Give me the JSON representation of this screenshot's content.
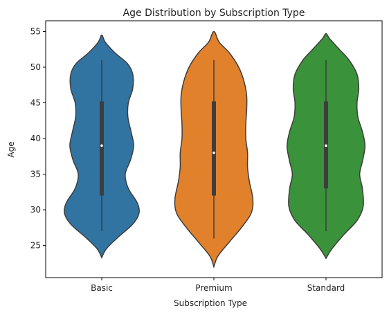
{
  "chart_data": {
    "type": "violin",
    "title": "Age Distribution by Subscription Type",
    "xlabel": "Subscription Type",
    "ylabel": "Age",
    "ylim": [
      20.5,
      56.5
    ],
    "yticks": [
      25,
      30,
      35,
      40,
      45,
      50,
      55
    ],
    "grid": false,
    "categories": [
      "Basic",
      "Premium",
      "Standard"
    ],
    "series": [
      {
        "category": "Basic",
        "color": "#3274a1",
        "whisker": [
          27,
          51
        ],
        "q1": 32,
        "median": 39,
        "q3": 45.2,
        "density_profile": [
          [
            23.3,
            0.0
          ],
          [
            24.5,
            0.1
          ],
          [
            26,
            0.34
          ],
          [
            28,
            0.7
          ],
          [
            29.5,
            0.84
          ],
          [
            31,
            0.8
          ],
          [
            33,
            0.6
          ],
          [
            35,
            0.53
          ],
          [
            37,
            0.65
          ],
          [
            39,
            0.72
          ],
          [
            41,
            0.66
          ],
          [
            43,
            0.59
          ],
          [
            45,
            0.6
          ],
          [
            47,
            0.7
          ],
          [
            49,
            0.7
          ],
          [
            50.5,
            0.58
          ],
          [
            52,
            0.3
          ],
          [
            53.5,
            0.08
          ],
          [
            54.5,
            0.0
          ]
        ]
      },
      {
        "category": "Premium",
        "color": "#e1812c",
        "whisker": [
          26,
          51
        ],
        "q1": 32,
        "median": 38,
        "q3": 45.2,
        "density_profile": [
          [
            22.0,
            0.0
          ],
          [
            23.5,
            0.09
          ],
          [
            25.5,
            0.35
          ],
          [
            27.5,
            0.62
          ],
          [
            29.5,
            0.84
          ],
          [
            31.5,
            0.88
          ],
          [
            34,
            0.8
          ],
          [
            36,
            0.76
          ],
          [
            38,
            0.76
          ],
          [
            40,
            0.72
          ],
          [
            42,
            0.72
          ],
          [
            44,
            0.74
          ],
          [
            46,
            0.74
          ],
          [
            48,
            0.68
          ],
          [
            50,
            0.56
          ],
          [
            52,
            0.35
          ],
          [
            53.5,
            0.12
          ],
          [
            55,
            0.0
          ]
        ]
      },
      {
        "category": "Standard",
        "color": "#3a923a",
        "whisker": [
          27,
          51
        ],
        "q1": 33,
        "median": 39,
        "q3": 45.2,
        "density_profile": [
          [
            23.2,
            0.0
          ],
          [
            24.5,
            0.13
          ],
          [
            26.5,
            0.4
          ],
          [
            28.5,
            0.7
          ],
          [
            30.5,
            0.84
          ],
          [
            33,
            0.82
          ],
          [
            35,
            0.76
          ],
          [
            37,
            0.83
          ],
          [
            39,
            0.88
          ],
          [
            41,
            0.82
          ],
          [
            43,
            0.72
          ],
          [
            45,
            0.7
          ],
          [
            47,
            0.74
          ],
          [
            49,
            0.7
          ],
          [
            51,
            0.52
          ],
          [
            52.5,
            0.3
          ],
          [
            54,
            0.08
          ],
          [
            54.7,
            0.0
          ]
        ]
      }
    ]
  },
  "style": {
    "outline_color": "#3d3d3d",
    "box_color": "#3d3d3d",
    "median_color": "#ffffff",
    "axis_color": "#000000",
    "text_color": "#222222"
  }
}
